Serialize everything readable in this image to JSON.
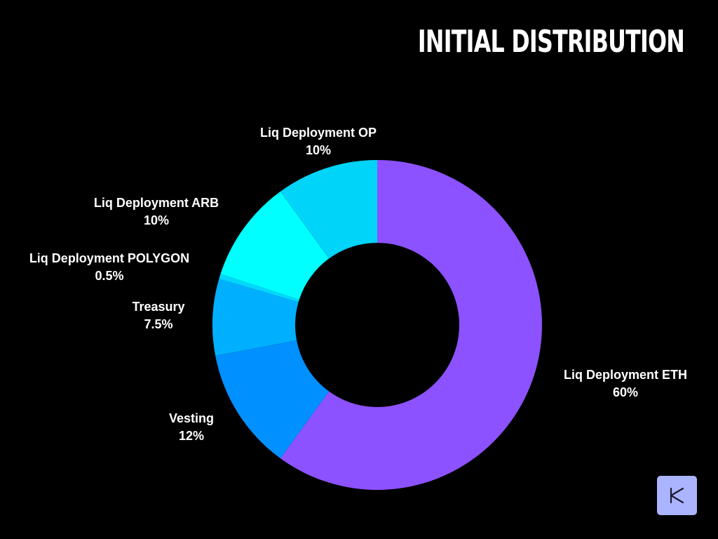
{
  "title": "INITIAL DISTRIBUTION",
  "chart_data": {
    "type": "pie",
    "donut": true,
    "title": "INITIAL DISTRIBUTION",
    "slices": [
      {
        "label": "Liq Deployment ETH",
        "value": 60,
        "value_label": "60%",
        "color": "#8c52ff"
      },
      {
        "label": "Vesting",
        "value": 12,
        "value_label": "12%",
        "color": "#0090ff"
      },
      {
        "label": "Treasury",
        "value": 7.5,
        "value_label": "7.5%",
        "color": "#00b0ff"
      },
      {
        "label": "Liq Deployment POLYGON",
        "value": 0.5,
        "value_label": "0.5%",
        "color": "#00d8ff"
      },
      {
        "label": "Liq Deployment ARB",
        "value": 10,
        "value_label": "10%",
        "color": "#00ffff"
      },
      {
        "label": "Liq Deployment OP",
        "value": 10,
        "value_label": "10%",
        "color": "#00d4f8"
      }
    ],
    "legend": "none"
  },
  "logo": {
    "icon": "brand-logo-icon",
    "color": "#aab4ff"
  }
}
